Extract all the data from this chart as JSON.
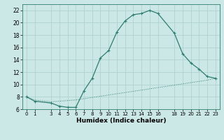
{
  "xlabel": "Humidex (Indice chaleur)",
  "ylabel": "",
  "line1_x": [
    0,
    1,
    3,
    4,
    5,
    6,
    7,
    8,
    9,
    10,
    11,
    12,
    13,
    14,
    15,
    16,
    18,
    19,
    20,
    21,
    22,
    23
  ],
  "line1_y": [
    8,
    7.3,
    7,
    6.5,
    6.3,
    6.3,
    9,
    11,
    14.3,
    15.5,
    18.5,
    20.3,
    21.3,
    21.5,
    22,
    21.5,
    18.3,
    15,
    13.5,
    12.5,
    11.3,
    11
  ],
  "line2_x": [
    0,
    1,
    3,
    4,
    5,
    6,
    7,
    8,
    9,
    10,
    11,
    12,
    13,
    14,
    15,
    16,
    18,
    19,
    20,
    21,
    22,
    23
  ],
  "line2_y": [
    8.0,
    7.5,
    7.2,
    7.3,
    7.4,
    7.5,
    7.7,
    7.9,
    8.1,
    8.3,
    8.5,
    8.7,
    8.9,
    9.1,
    9.3,
    9.5,
    9.9,
    10.1,
    10.3,
    10.5,
    10.7,
    11.0
  ],
  "line_color": "#2e7d6e",
  "bg_color": "#cce8e6",
  "grid_color": "#aacfcc",
  "xlim": [
    -0.5,
    23.5
  ],
  "ylim": [
    6,
    23
  ],
  "xticks": [
    0,
    1,
    3,
    4,
    5,
    6,
    7,
    8,
    9,
    10,
    11,
    12,
    13,
    14,
    15,
    16,
    18,
    19,
    20,
    21,
    22,
    23
  ],
  "yticks": [
    6,
    8,
    10,
    12,
    14,
    16,
    18,
    20,
    22
  ],
  "marker": "+"
}
